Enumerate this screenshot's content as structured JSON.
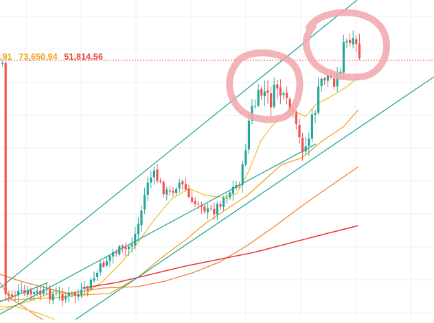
{
  "readout": {
    "values": [
      ".91",
      "73,650.94",
      "51,814.56"
    ],
    "colors": [
      "#f0a31a",
      "#f0a31a",
      "#e8483b"
    ]
  },
  "colors": {
    "up": "#26a69a",
    "down": "#ef5350",
    "grid": "#edf1f5",
    "trendline": "#26a69a",
    "ma_fast": "#f2c12e",
    "ma_mid": "#f0a31a",
    "ma_slow": "#f08030",
    "ma_long": "#e53935",
    "price_line": "#ef5350",
    "highlight": "#f2a6ad"
  },
  "chart_data": {
    "type": "candlestick",
    "y_axis": {
      "price_line_value": 73650.94
    },
    "series": [
      {
        "name": "",
        "kind": "candles",
        "note": "price candles rising inside an ascending channel"
      },
      {
        "name": "",
        "kind": "moving_average",
        "color": "#f2c12e"
      },
      {
        "name": "",
        "kind": "moving_average",
        "color": "#f0a31a"
      },
      {
        "name": "",
        "kind": "moving_average",
        "color": "#f08030"
      },
      {
        "name": "",
        "kind": "moving_average",
        "color": "#e53935"
      }
    ],
    "annotations": [
      {
        "kind": "trend_channel",
        "lines": [
          "upper",
          "middle",
          "lower"
        ]
      },
      {
        "kind": "hand_drawn_circle",
        "target": "first local top"
      },
      {
        "kind": "hand_drawn_circle",
        "target": "latest top"
      }
    ]
  }
}
